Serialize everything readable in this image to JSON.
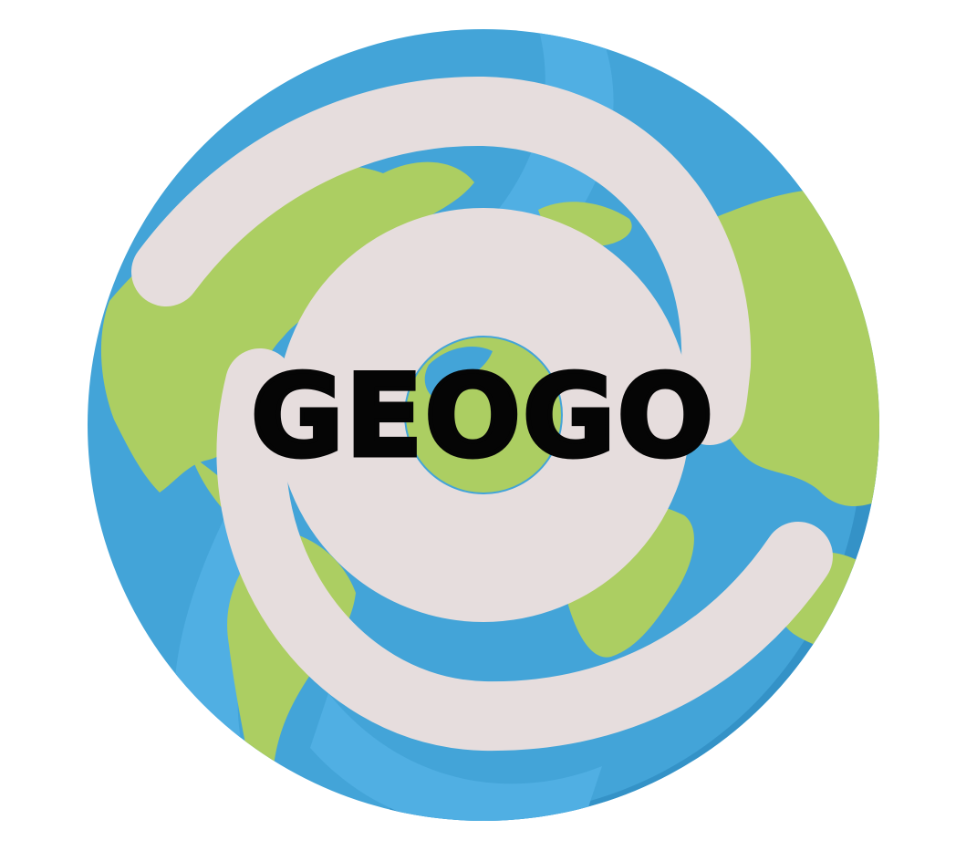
{
  "logo": {
    "wordmark": "GEOGO",
    "icon": "globe-with-spiral-icon"
  },
  "colors": {
    "ocean": "#43a4d8",
    "ocean_light": "#50afe3",
    "ocean_dark": "#2f8cc2",
    "land": "#acce62",
    "spiral": "#e6dddd",
    "text": "#050505",
    "background": "#ffffff"
  }
}
